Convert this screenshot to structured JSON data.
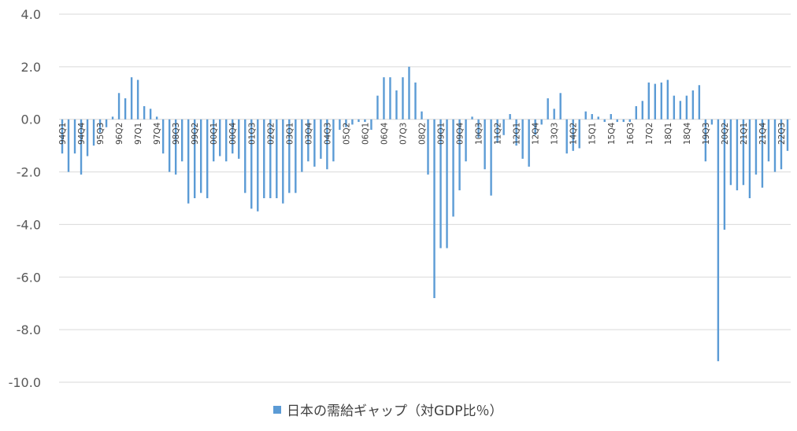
{
  "chart_data": {
    "type": "bar",
    "categories": [
      "94Q1",
      "94Q2",
      "94Q3",
      "94Q4",
      "95Q1",
      "95Q2",
      "95Q3",
      "95Q4",
      "96Q1",
      "96Q2",
      "96Q3",
      "96Q4",
      "97Q1",
      "97Q2",
      "97Q3",
      "97Q4",
      "98Q1",
      "98Q2",
      "98Q3",
      "98Q4",
      "99Q1",
      "99Q2",
      "99Q3",
      "99Q4",
      "00Q1",
      "00Q2",
      "00Q3",
      "00Q4",
      "01Q1",
      "01Q2",
      "01Q3",
      "01Q4",
      "02Q1",
      "02Q2",
      "02Q3",
      "02Q4",
      "03Q1",
      "03Q2",
      "03Q3",
      "03Q4",
      "04Q1",
      "04Q2",
      "04Q3",
      "04Q4",
      "05Q1",
      "05Q2",
      "05Q3",
      "05Q4",
      "06Q1",
      "06Q2",
      "06Q3",
      "06Q4",
      "07Q1",
      "07Q2",
      "07Q3",
      "07Q4",
      "08Q1",
      "08Q2",
      "08Q3",
      "08Q4",
      "09Q1",
      "09Q2",
      "09Q3",
      "09Q4",
      "10Q1",
      "10Q2",
      "10Q3",
      "10Q4",
      "11Q1",
      "11Q2",
      "11Q3",
      "11Q4",
      "12Q1",
      "12Q2",
      "12Q3",
      "12Q4",
      "13Q1",
      "13Q2",
      "13Q3",
      "13Q4",
      "14Q1",
      "14Q2",
      "14Q3",
      "14Q4",
      "15Q1",
      "15Q2",
      "15Q3",
      "15Q4",
      "16Q1",
      "16Q2",
      "16Q3",
      "16Q4",
      "17Q1",
      "17Q2",
      "17Q3",
      "17Q4",
      "18Q1",
      "18Q2",
      "18Q3",
      "18Q4",
      "19Q1",
      "19Q2",
      "19Q3",
      "19Q4",
      "20Q1",
      "20Q2",
      "20Q3",
      "20Q4",
      "21Q1",
      "21Q2",
      "21Q3",
      "21Q4",
      "22Q1",
      "22Q2",
      "22Q3",
      "22Q4"
    ],
    "tick_labels": [
      "94Q1",
      "94Q4",
      "95Q3",
      "96Q2",
      "97Q1",
      "97Q4",
      "98Q3",
      "99Q2",
      "00Q1",
      "00Q4",
      "01Q3",
      "02Q2",
      "03Q1",
      "03Q4",
      "04Q3",
      "05Q2",
      "06Q1",
      "06Q4",
      "07Q3",
      "08Q2",
      "09Q1",
      "09Q4",
      "10Q3",
      "11Q2",
      "12Q1",
      "12Q4",
      "13Q3",
      "14Q2",
      "15Q1",
      "15Q4",
      "16Q3",
      "17Q2",
      "18Q1",
      "18Q4",
      "19Q3",
      "20Q2",
      "21Q1",
      "21Q4",
      "22Q3"
    ],
    "series": [
      {
        "name": "日本の需給ギャップ（対GDP比％）",
        "color": "#5b9bd5",
        "values": [
          -1.3,
          -2.0,
          -1.3,
          -2.1,
          -1.4,
          -1.0,
          -0.5,
          -0.3,
          0.1,
          1.0,
          0.8,
          1.6,
          1.5,
          0.5,
          0.4,
          0.1,
          -1.3,
          -2.0,
          -2.1,
          -1.6,
          -3.2,
          -3.0,
          -2.8,
          -3.0,
          -1.6,
          -1.4,
          -1.6,
          -1.3,
          -1.5,
          -2.8,
          -3.4,
          -3.5,
          -3.0,
          -3.0,
          -3.0,
          -3.2,
          -2.8,
          -2.8,
          -2.0,
          -1.6,
          -1.8,
          -1.5,
          -1.9,
          -1.6,
          -0.4,
          -0.3,
          -0.2,
          -0.1,
          -0.1,
          -0.4,
          0.9,
          1.6,
          1.6,
          1.1,
          1.6,
          2.0,
          1.4,
          0.3,
          -2.1,
          -6.8,
          -4.9,
          -4.9,
          -3.7,
          -2.7,
          -1.6,
          0.1,
          -0.7,
          -1.9,
          -2.9,
          -0.9,
          -0.6,
          0.2,
          -1.0,
          -1.5,
          -1.8,
          -0.6,
          -0.2,
          0.8,
          0.4,
          1.0,
          -1.3,
          -1.2,
          -1.1,
          0.3,
          0.2,
          0.1,
          -0.1,
          0.2,
          -0.1,
          -0.1,
          -0.1,
          0.5,
          0.7,
          1.4,
          1.35,
          1.4,
          1.5,
          0.9,
          0.7,
          0.9,
          1.1,
          1.3,
          -1.6,
          -0.2,
          -9.2,
          -4.2,
          -2.5,
          -2.7,
          -2.5,
          -3.0,
          -2.1,
          -2.6,
          -1.6,
          -2.0,
          -1.9,
          -1.2
        ]
      }
    ],
    "yticks": [
      "4.0",
      "2.0",
      "0.0",
      "-2.0",
      "-4.0",
      "-6.0",
      "-8.0",
      "-10.0"
    ],
    "ylim": [
      -10,
      4
    ],
    "ystep": 2,
    "grid": true,
    "legend_position": "bottom",
    "title": "",
    "xlabel": "",
    "ylabel": ""
  }
}
